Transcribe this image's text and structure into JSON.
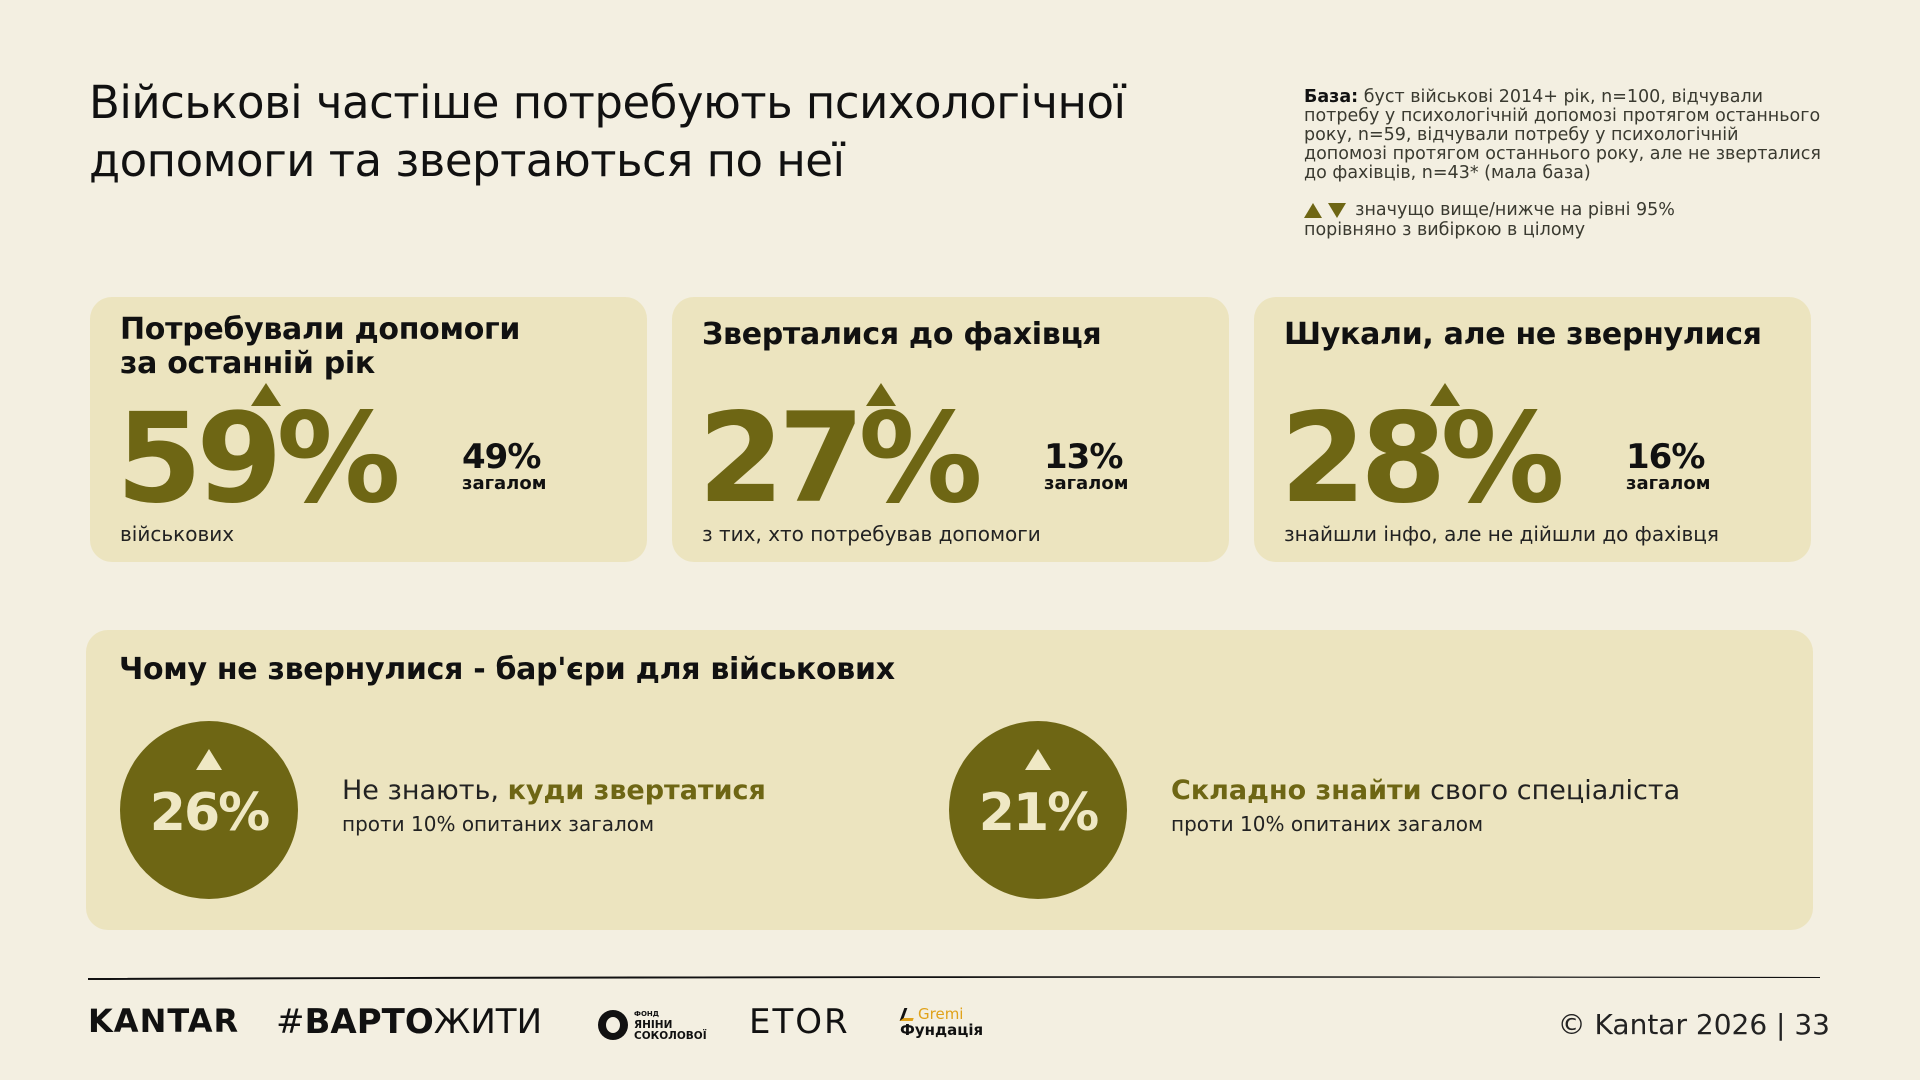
{
  "title": "Військові частіше потребують психологічної допомоги та звертаються по неї",
  "base_label": "База:",
  "base_text": "буст військові 2014+ рік, n=100, відчували потребу у психологічній допомозі протягом останнього року, n=59, відчували потребу у психологічній допомозі протягом останнього року, але не зверталися до фахівців, n=43* (мала база)",
  "legend_text": "значущо вище/нижче на рівні 95% порівняно з вибіркою в цілому",
  "cards": [
    {
      "title": "Потребували допомоги за останній рік",
      "value": "59%",
      "compare_value": "49%",
      "compare_label": "загалом",
      "subtitle": "військових",
      "significance": "higher"
    },
    {
      "title": "Зверталися до фахівця",
      "value": "27%",
      "compare_value": "13%",
      "compare_label": "загалом",
      "subtitle": "з тих, хто потребував допомоги",
      "significance": "higher"
    },
    {
      "title": "Шукали, але не звернулися",
      "value": "28%",
      "compare_value": "16%",
      "compare_label": "загалом",
      "subtitle": "знайшли інфо, але не дійшли до фахівця",
      "significance": "higher"
    }
  ],
  "barriers": {
    "title": "Чому не звернулися - бар'єри для військових",
    "items": [
      {
        "value": "26%",
        "text_before": "Не знають, ",
        "highlight": "куди звертатися",
        "text_after": "",
        "sub": "проти 10% опитаних загалом",
        "significance": "higher"
      },
      {
        "value": "21%",
        "text_before": "",
        "highlight": "Складно знайти",
        "text_after": " свого спеціаліста",
        "sub": "проти 10% опитаних загалом",
        "significance": "higher"
      }
    ]
  },
  "footer": {
    "kantar": "KANTAR",
    "varto_hash": "#",
    "varto_bold": "ВАРТО",
    "varto_rest": "ЖИТИ",
    "fond_small": "ФОНД",
    "fond_line1": "ЯНІНИ",
    "fond_line2": "СОКОЛОВОЇ",
    "etor": "ETOR",
    "gremi_top": "Gremi",
    "gremi_bottom": "Фундація",
    "copyright": "© Kantar 2026 | 33"
  },
  "colors": {
    "accent": "#6e6614",
    "card_bg": "#ece4bf",
    "page_bg": "#f3efe1"
  }
}
